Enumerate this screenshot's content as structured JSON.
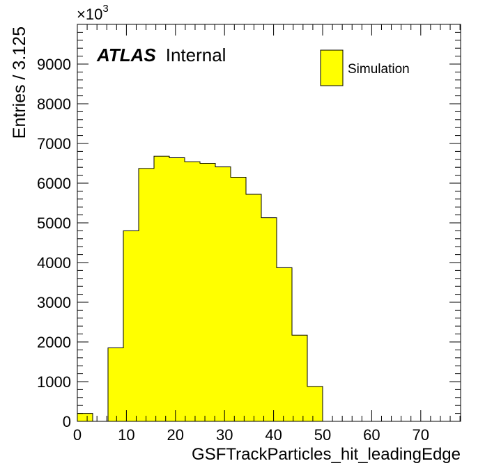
{
  "chart_data": {
    "type": "bar",
    "title": "",
    "xlabel": "GSFTrackParticles_hit_leadingEdge",
    "ylabel": "Entries / 3.125",
    "y_multiplier_label": "×10",
    "y_multiplier_exponent": "3",
    "xlim": [
      0,
      78.125
    ],
    "ylim": [
      0,
      10000
    ],
    "x_ticks": [
      0,
      10,
      20,
      30,
      40,
      50,
      60,
      70
    ],
    "y_ticks": [
      0,
      1000,
      2000,
      3000,
      4000,
      5000,
      6000,
      7000,
      8000,
      9000
    ],
    "bin_width": 3.125,
    "bin_edges": [
      0,
      3.125,
      6.25,
      9.375,
      12.5,
      15.625,
      18.75,
      21.875,
      25,
      28.125,
      31.25,
      34.375,
      37.5,
      40.625,
      43.75,
      46.875,
      50,
      53.125,
      56.25,
      59.375,
      62.5,
      65.625,
      68.75,
      71.875,
      75,
      78.125
    ],
    "series": [
      {
        "name": "Simulation",
        "color": "#ffff00",
        "values": [
          200,
          0,
          1850,
          4800,
          6370,
          6680,
          6640,
          6540,
          6500,
          6410,
          6150,
          5720,
          5130,
          3870,
          2170,
          880,
          0,
          0,
          0,
          0,
          0,
          0,
          0,
          0,
          0
        ]
      }
    ],
    "legend": {
      "position": "top-right",
      "entries": [
        "Simulation"
      ]
    },
    "annotation": {
      "bold": "ATLAS",
      "normal": "Internal"
    },
    "grid": false
  }
}
